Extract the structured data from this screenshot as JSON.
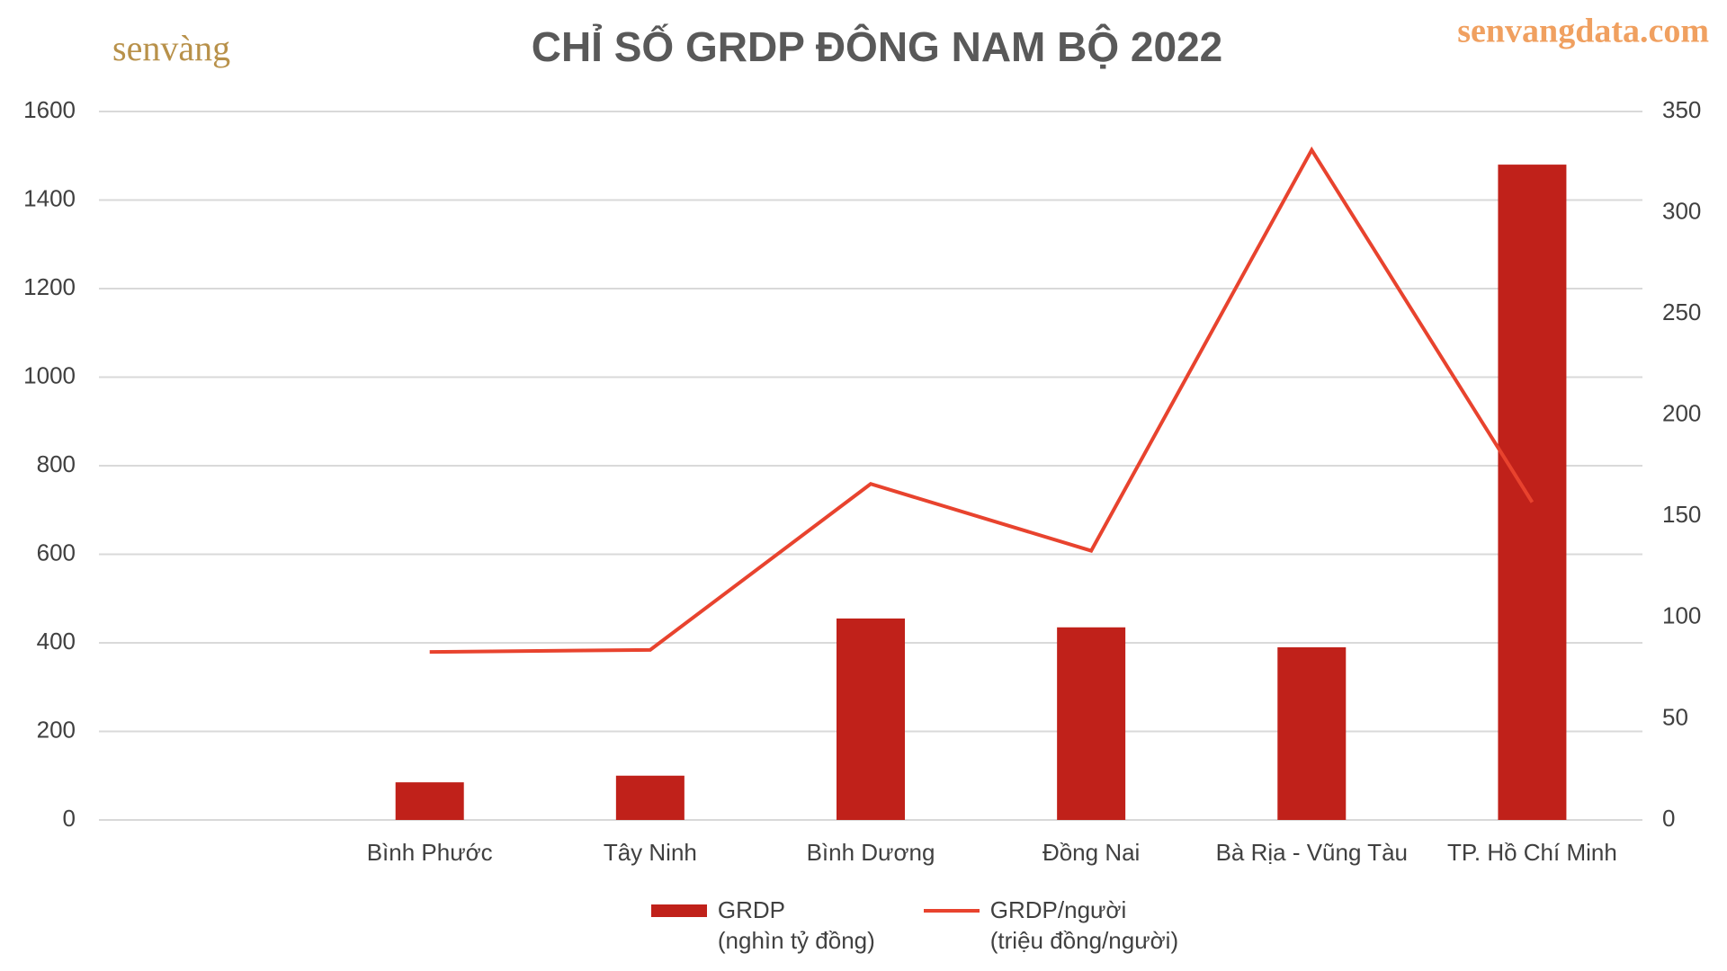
{
  "chart_data": {
    "type": "bar-line",
    "title": "CHỈ SỐ GRDP ĐÔNG NAM BỘ 2022",
    "logo": "senvàng",
    "source": "senvangdata.com",
    "categories": [
      null,
      "Bình Phước",
      "Tây Ninh",
      "Bình Dương",
      "Đồng Nai",
      "Bà Rịa - Vũng Tàu",
      "TP. Hồ Chí Minh"
    ],
    "series": [
      {
        "name": "GRDP\n(nghìn tỷ đồng)",
        "type": "bar",
        "color": "#c0211a",
        "values": [
          null,
          85,
          100,
          455,
          435,
          390,
          1480
        ]
      },
      {
        "name": "GRDP/người\n(triệu đồng/người)",
        "type": "line",
        "axis": "y2",
        "color": "#e8432e",
        "values": [
          null,
          83,
          84,
          166,
          133,
          331,
          157
        ]
      }
    ],
    "ylim": [
      0,
      1600
    ],
    "yticks": [
      0,
      200,
      400,
      600,
      800,
      1000,
      1200,
      1400,
      1600
    ],
    "y2lim": [
      0,
      350
    ],
    "y2ticks": [
      0,
      50,
      100,
      150,
      200,
      250,
      300,
      350
    ],
    "grid": true
  }
}
